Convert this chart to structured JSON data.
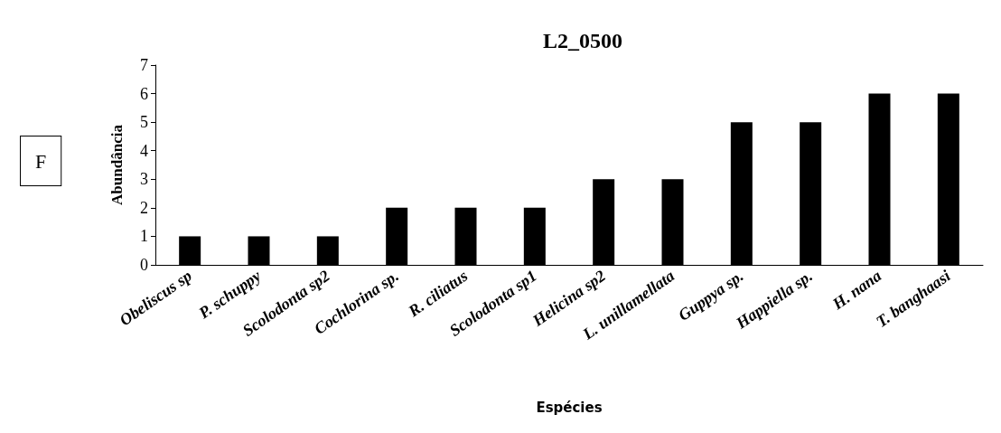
{
  "chart_data": {
    "type": "bar",
    "title": "L2_0500",
    "xlabel": "Espécies",
    "ylabel": "Abundância",
    "annotations": [
      "F"
    ],
    "categories": [
      "Obeliscus sp",
      "P. schuppy",
      "Scolodonta sp2",
      "Cochlorina sp.",
      "R. ciliatus",
      "Scolodonta sp1",
      "Helicina sp2",
      "L. unillamellata",
      "Guppya sp.",
      "Happiella sp.",
      "H. nana",
      "T. banghaasi"
    ],
    "values": [
      1,
      1,
      1,
      2,
      2,
      2,
      3,
      3,
      5,
      5,
      6,
      6
    ],
    "color": "#000000",
    "ylim": [
      0,
      7
    ],
    "yticks": [
      0,
      1,
      2,
      3,
      4,
      5,
      6,
      7
    ],
    "grid": false
  }
}
